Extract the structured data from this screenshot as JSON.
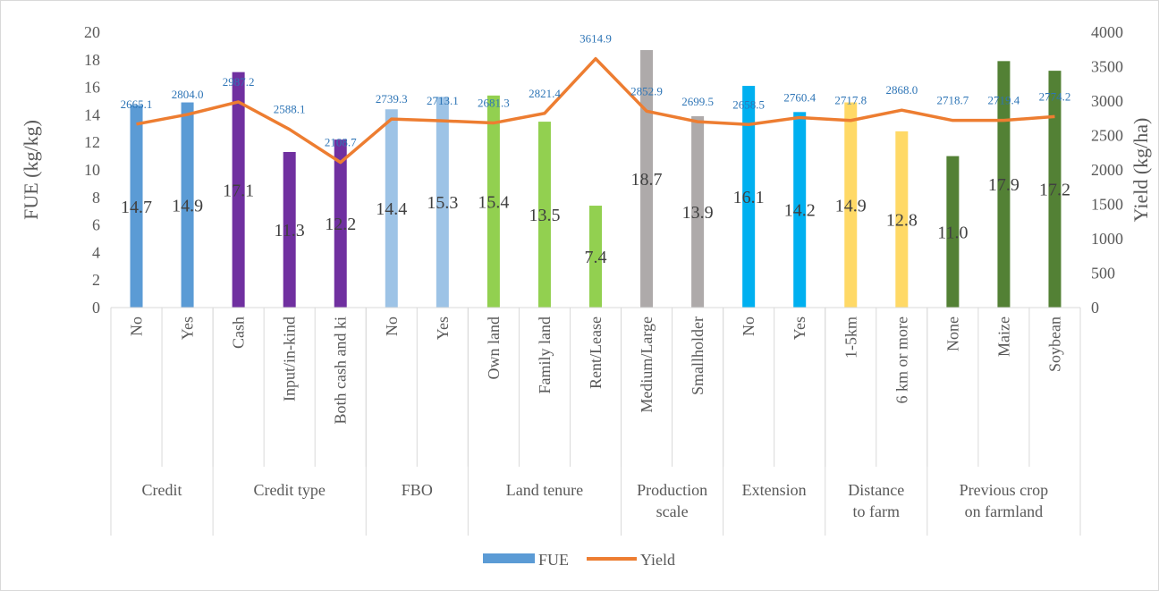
{
  "chart_data": {
    "type": "bar",
    "title": "",
    "y_left": {
      "label": "FUE (kg/kg)",
      "min": 0,
      "max": 20,
      "step": 2
    },
    "y_right": {
      "label": "Yield (kg/ha)",
      "min": 0,
      "max": 4000,
      "step": 500
    },
    "categories": [
      "No",
      "Yes",
      "Cash",
      "Input/in-kind",
      "Both cash and ki",
      "No",
      "Yes",
      "Own land",
      "Family land",
      "Rent/Lease",
      "Medium/Large",
      "Smallholder",
      "No",
      "Yes",
      "1-5km",
      "6 km or more",
      "None",
      "Maize",
      "Soybean"
    ],
    "groups": [
      {
        "label_lines": [
          "Credit"
        ],
        "count": 2
      },
      {
        "label_lines": [
          "Credit type"
        ],
        "count": 3
      },
      {
        "label_lines": [
          "FBO"
        ],
        "count": 2
      },
      {
        "label_lines": [
          "Land tenure"
        ],
        "count": 3
      },
      {
        "label_lines": [
          "Production",
          "scale"
        ],
        "count": 2
      },
      {
        "label_lines": [
          "Extension"
        ],
        "count": 2
      },
      {
        "label_lines": [
          "Distance",
          "to farm"
        ],
        "count": 2
      },
      {
        "label_lines": [
          "Previous crop",
          "on farmland"
        ],
        "count": 3
      }
    ],
    "series": [
      {
        "name": "FUE",
        "kind": "bar",
        "axis": "left",
        "values": [
          14.7,
          14.9,
          17.1,
          11.3,
          12.2,
          14.4,
          15.3,
          15.4,
          13.5,
          7.4,
          18.7,
          13.9,
          16.1,
          14.2,
          14.9,
          12.8,
          11.0,
          17.9,
          17.2
        ],
        "labels": [
          "14.7",
          "14.9",
          "17.1",
          "11.3",
          "12.2",
          "14.4",
          "15.3",
          "15.4",
          "13.5",
          "7.4",
          "18.7",
          "13.9",
          "16.1",
          "14.2",
          "14.9",
          "12.8",
          "11.0",
          "17.9",
          "17.2"
        ],
        "colors": [
          "#5b9bd5",
          "#5b9bd5",
          "#7030a0",
          "#7030a0",
          "#7030a0",
          "#9dc3e6",
          "#9dc3e6",
          "#92d050",
          "#92d050",
          "#92d050",
          "#aeaaaa",
          "#aeaaaa",
          "#00b0f0",
          "#00b0f0",
          "#ffd966",
          "#ffd966",
          "#538135",
          "#538135",
          "#538135"
        ]
      },
      {
        "name": "Yield",
        "kind": "line",
        "axis": "right",
        "color": "#ed7d31",
        "values": [
          2665.1,
          2804.0,
          2987.2,
          2588.1,
          2108.7,
          2739.3,
          2713.1,
          2681.3,
          2821.4,
          3614.9,
          2852.9,
          2699.5,
          2658.5,
          2760.4,
          2717.8,
          2868.0,
          2718.7,
          2719.4,
          2774.2
        ],
        "labels": [
          "2665.1",
          "2804.0",
          "2987.2",
          "2588.1",
          "2108.7",
          "2739.3",
          "2713.1",
          "2681.3",
          "2821.4",
          "3614.9",
          "2852.9",
          "2699.5",
          "2658.5",
          "2760.4",
          "2717.8",
          "2868.0",
          "2718.7",
          "2719.4",
          "2774.2"
        ]
      }
    ],
    "legend": {
      "position": "bottom",
      "items": [
        {
          "label": "FUE",
          "color": "#5b9bd5"
        },
        {
          "label": "Yield",
          "color": "#ed7d31"
        }
      ]
    },
    "grid": false
  }
}
